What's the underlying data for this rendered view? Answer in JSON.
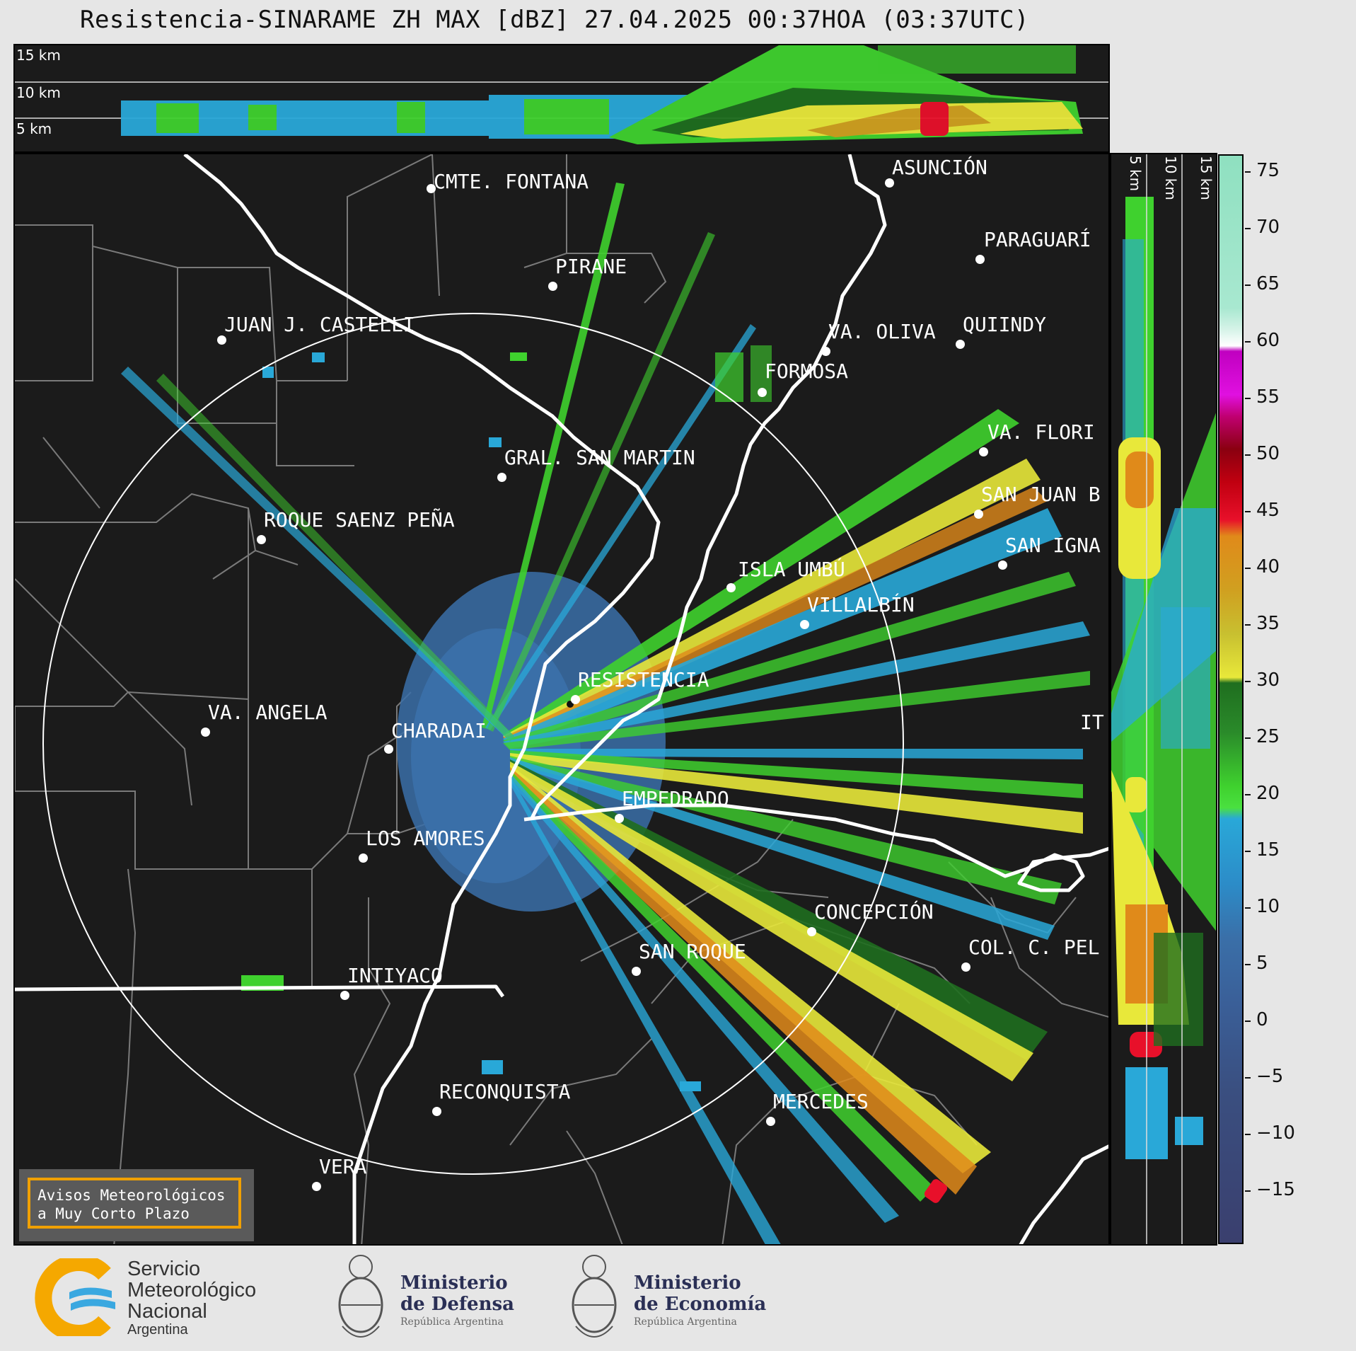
{
  "title": "Resistencia-SINARAME ZH MAX [dBZ] 27.04.2025 00:37HOA (03:37UTC)",
  "top_panel": {
    "altitude_labels": [
      "15 km",
      "10 km",
      "5 km"
    ]
  },
  "side_panel": {
    "altitude_labels": [
      "5 km",
      "10 km",
      "15 km"
    ]
  },
  "colorbar": {
    "ticks": [
      "75",
      "70",
      "65",
      "60",
      "55",
      "50",
      "45",
      "40",
      "35",
      "30",
      "25",
      "20",
      "15",
      "10",
      "5",
      "0",
      "−5",
      "−10",
      "−15"
    ],
    "colors": {
      "deep_blue": "#3a3f6e",
      "blue": "#3a6fa8",
      "cyan": "#29a8d8",
      "green": "#3fd12e",
      "dark_green": "#1f6e1f",
      "yellow": "#e8e83a",
      "orange": "#e08a1a",
      "red": "#e8102a",
      "dark_red": "#8a0010",
      "magenta": "#e010e0",
      "white": "#ffffff",
      "aqua": "#8fe0c0"
    }
  },
  "cities": [
    {
      "name": "CMTE. FONTANA"
    },
    {
      "name": "ASUNCIÓN"
    },
    {
      "name": "PIRANE"
    },
    {
      "name": "PARAGUARÍ"
    },
    {
      "name": "JUAN J. CASTELLI"
    },
    {
      "name": "VA. OLIVA"
    },
    {
      "name": "QUIINDY"
    },
    {
      "name": "FORMOSA"
    },
    {
      "name": "VA. FLORI"
    },
    {
      "name": "GRAL. SAN MARTIN"
    },
    {
      "name": "SAN JUAN B"
    },
    {
      "name": "ROQUE SAENZ PEÑA"
    },
    {
      "name": "SAN IGNA"
    },
    {
      "name": "ISLA UMBÚ"
    },
    {
      "name": "VILLALBÍN"
    },
    {
      "name": "RESISTENCIA"
    },
    {
      "name": "VA. ANGELA"
    },
    {
      "name": "CHARADAI"
    },
    {
      "name": "IT"
    },
    {
      "name": "EMPEDRADO"
    },
    {
      "name": "LOS AMORES"
    },
    {
      "name": "CONCEPCIÓN"
    },
    {
      "name": "SAN ROQUE"
    },
    {
      "name": "COL. C. PEL"
    },
    {
      "name": "INTIYACO"
    },
    {
      "name": "RECONQUISTA"
    },
    {
      "name": "MERCEDES"
    },
    {
      "name": "VERA"
    }
  ],
  "avisos": {
    "line1": "Avisos Meteorológicos",
    "line2": "a Muy Corto Plazo"
  },
  "logos": {
    "smn": {
      "line1": "Servicio",
      "line2": "Meteorológico",
      "line3": "Nacional",
      "line4": "Argentina"
    },
    "defensa": {
      "line1": "Ministerio",
      "line2": "de Defensa",
      "line3": "República Argentina"
    },
    "economia": {
      "line1": "Ministerio",
      "line2": "de Economía",
      "line3": "República Argentina"
    }
  }
}
